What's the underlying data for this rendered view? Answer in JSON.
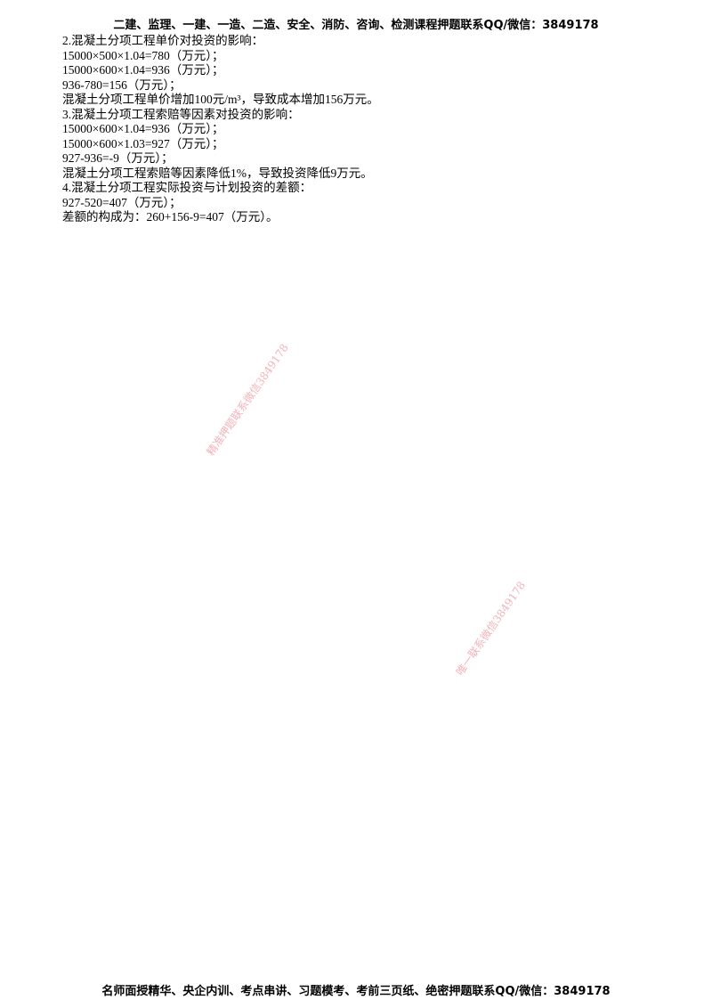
{
  "header": "二建、监理、一建、一造、二造、安全、消防、咨询、检测课程押题联系QQ/微信：3849178",
  "lines": [
    "2.混凝土分项工程单价对投资的影响：",
    "15000×500×1.04=780（万元）；",
    "15000×600×1.04=936（万元）；",
    "936-780=156（万元）；",
    "混凝土分项工程单价增加100元/m³，导致成本增加156万元。",
    "3.混凝土分项工程索赔等因素对投资的影响：",
    "15000×600×1.04=936（万元）；",
    "15000×600×1.03=927（万元）；",
    "927-936=-9（万元）；",
    "混凝土分项工程索赔等因素降低1%，导致投资降低9万元。",
    "4.混凝土分项工程实际投资与计划投资的差额：",
    "927-520=407（万元）；",
    "差额的构成为：260+156-9=407（万元）。"
  ],
  "watermarks": [
    "精准押题联系微信3849178",
    "唯一联系微信3849178"
  ],
  "watermark_color": "#f0a0a8",
  "footer": "名师面授精华、央企内训、考点串讲、习题模考、考前三页纸、绝密押题联系QQ/微信：3849178"
}
